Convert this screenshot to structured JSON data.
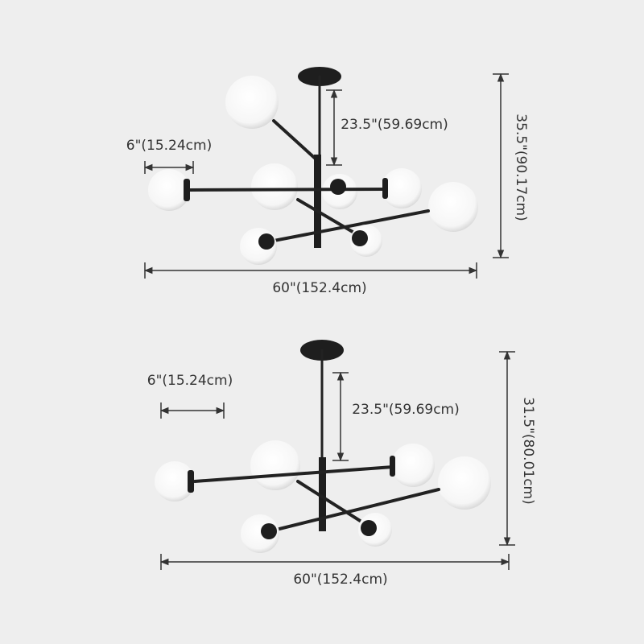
{
  "diagrams": [
    {
      "shade_width": "6\"(15.24cm)",
      "drop": "23.5\"(59.69cm)",
      "height": "35.5\"(90.17cm)",
      "width": "60\"(152.4cm)"
    },
    {
      "shade_width": "6\"(15.24cm)",
      "drop": "23.5\"(59.69cm)",
      "height": "31.5\"(80.01cm)",
      "width": "60\"(152.4cm)"
    }
  ]
}
